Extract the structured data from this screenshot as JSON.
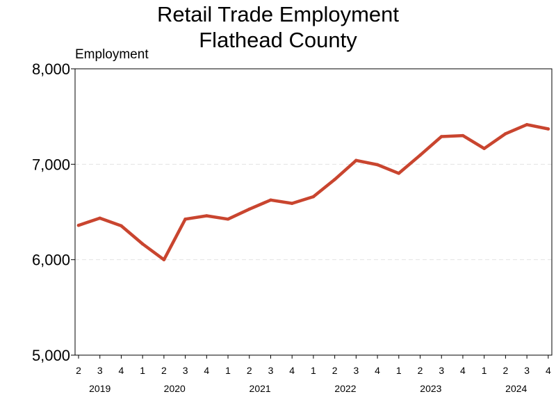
{
  "chart_data": {
    "type": "line",
    "title": [
      "Retail Trade Employment",
      "Flathead County"
    ],
    "ylabel": "Employment",
    "ylim": [
      5000,
      8000
    ],
    "y_ticks": [
      5000,
      6000,
      7000,
      8000
    ],
    "y_tick_labels": [
      "5,000",
      "6,000",
      "7,000",
      "8,000"
    ],
    "grid": "horizontal-dashed",
    "x_quarters": [
      "2",
      "3",
      "4",
      "1",
      "2",
      "3",
      "4",
      "1",
      "2",
      "3",
      "4",
      "1",
      "2",
      "3",
      "4",
      "1",
      "2",
      "3",
      "4",
      "1",
      "2",
      "3",
      "4"
    ],
    "x_years": [
      {
        "label": "2019",
        "start_index": 0,
        "end_index": 2
      },
      {
        "label": "2020",
        "start_index": 3,
        "end_index": 6
      },
      {
        "label": "2021",
        "start_index": 7,
        "end_index": 10
      },
      {
        "label": "2022",
        "start_index": 11,
        "end_index": 14
      },
      {
        "label": "2023",
        "start_index": 15,
        "end_index": 18
      },
      {
        "label": "2024",
        "start_index": 19,
        "end_index": 22
      }
    ],
    "series": [
      {
        "color": "#c9452f",
        "values": [
          6360,
          6435,
          6355,
          6165,
          6000,
          6425,
          6460,
          6425,
          6530,
          6625,
          6590,
          6660,
          6840,
          7040,
          6995,
          6905,
          7095,
          7290,
          7300,
          7165,
          7320,
          7415,
          7370
        ]
      }
    ]
  }
}
